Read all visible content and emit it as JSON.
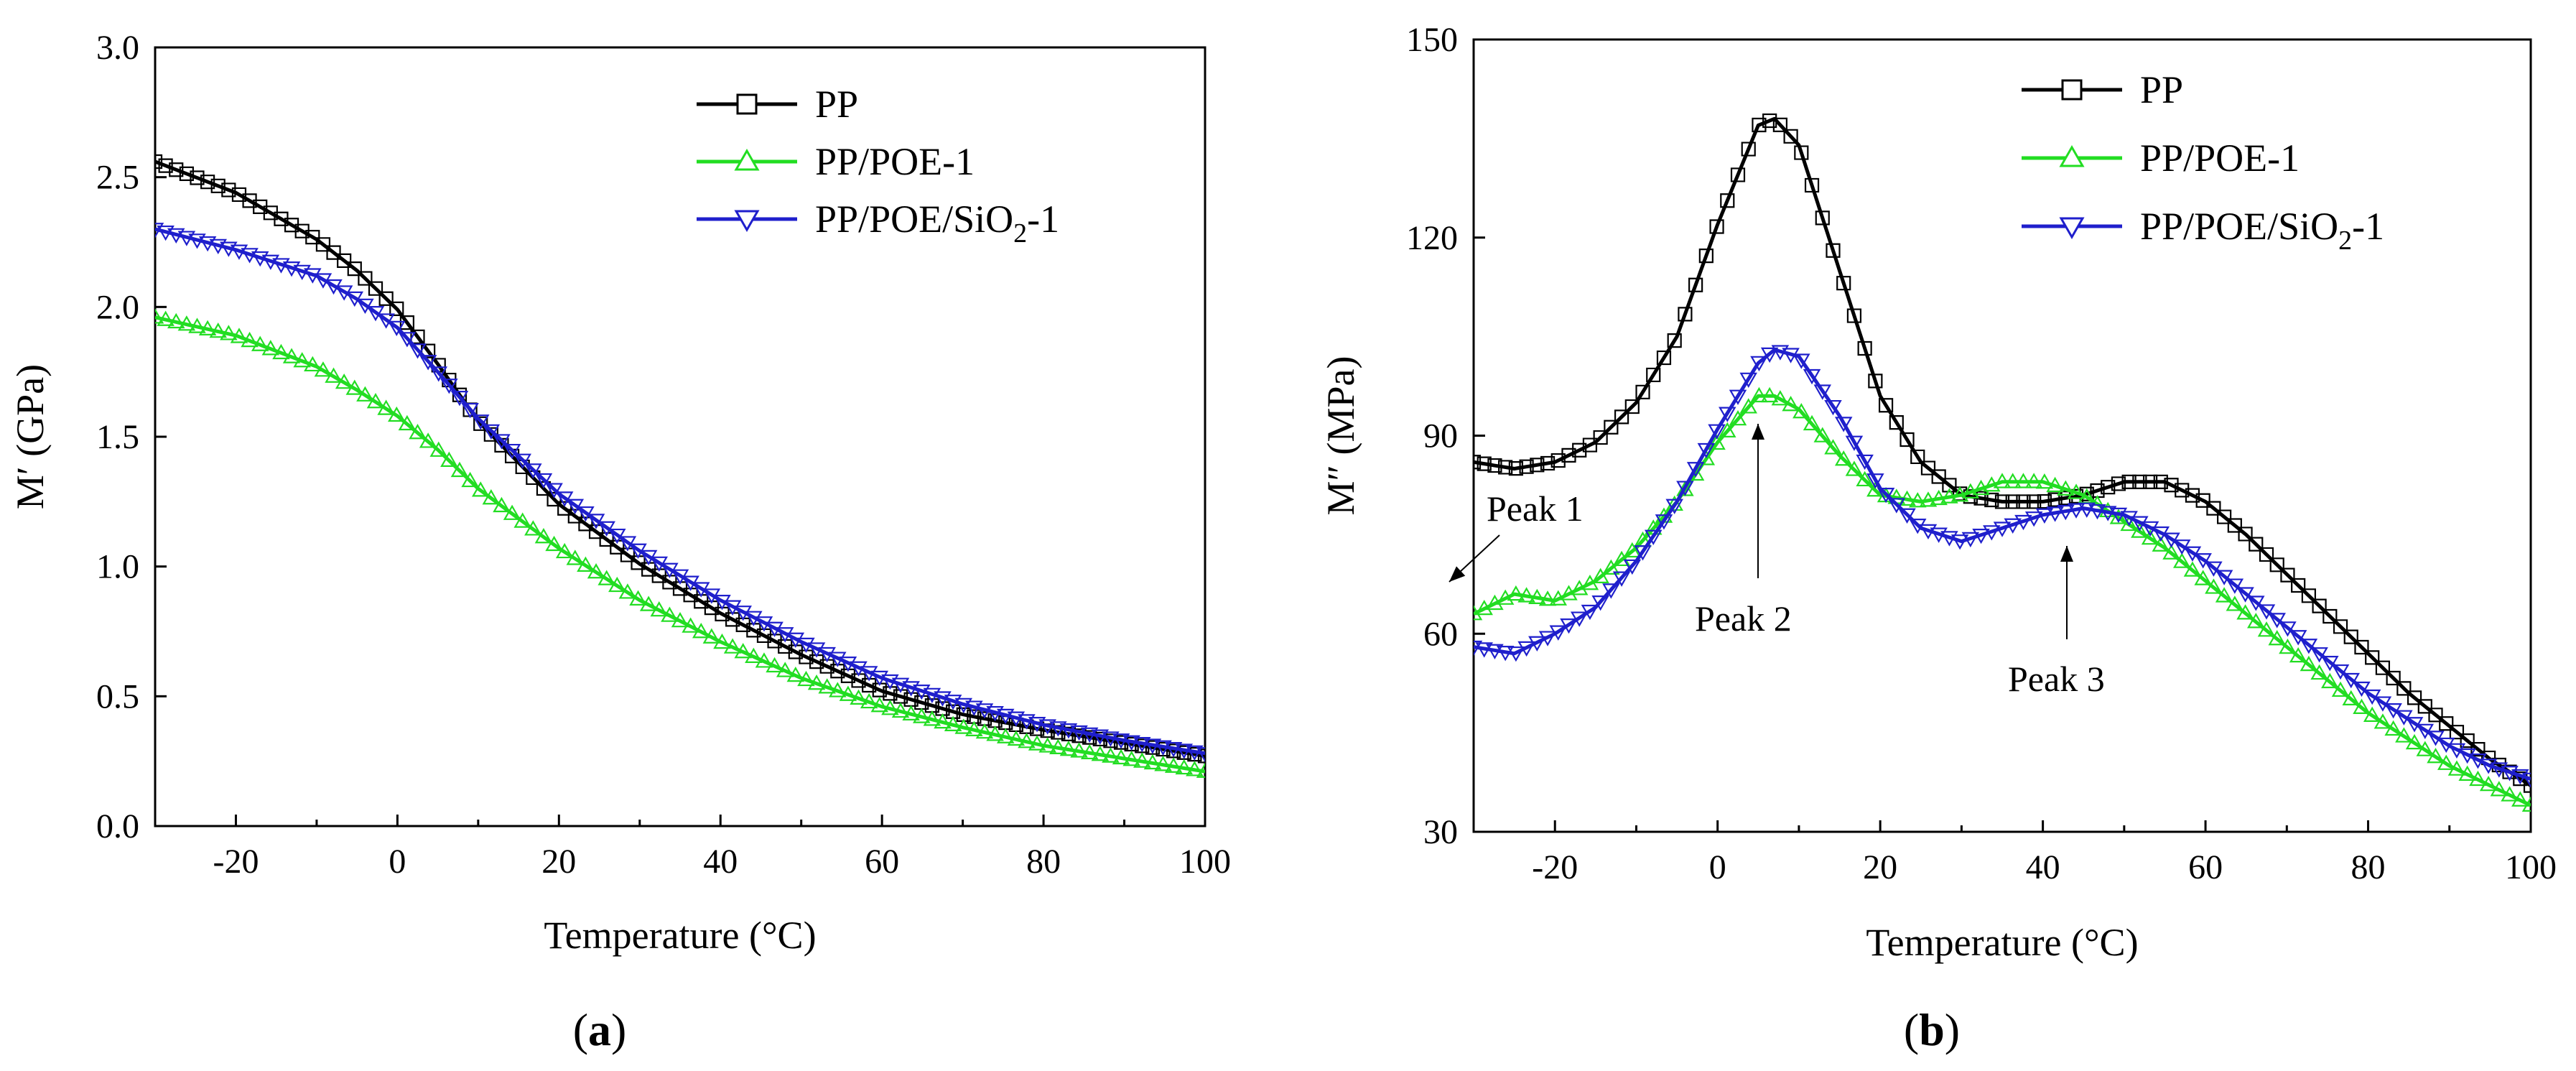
{
  "chart_data": [
    {
      "type": "line",
      "panel_label": "(a)",
      "panel_label_letter": "a",
      "xlabel": "Temperature (°C)",
      "ylabel": "M′ (GPa)",
      "xlim": [
        -30,
        100
      ],
      "ylim": [
        0.0,
        3.0
      ],
      "xticks": [
        "-20",
        "0",
        "20",
        "40",
        "60",
        "80",
        "100"
      ],
      "yticks": [
        "0.0",
        "0.5",
        "1.0",
        "1.5",
        "2.0",
        "2.5",
        "3.0"
      ],
      "legend_position": "top-right",
      "grid": false,
      "series": [
        {
          "name": "PP",
          "marker": "square",
          "color": "#000000",
          "x": [
            -30,
            -20,
            -10,
            -5,
            0,
            5,
            10,
            20,
            30,
            40,
            50,
            60,
            70,
            80,
            90,
            100
          ],
          "values": [
            2.56,
            2.44,
            2.26,
            2.14,
            1.99,
            1.78,
            1.56,
            1.24,
            1.01,
            0.82,
            0.66,
            0.52,
            0.43,
            0.37,
            0.32,
            0.27
          ]
        },
        {
          "name": "PP/POE-1",
          "marker": "triangle-up",
          "color": "#22dd22",
          "x": [
            -30,
            -20,
            -10,
            -5,
            0,
            5,
            10,
            20,
            30,
            40,
            50,
            60,
            70,
            80,
            90,
            100
          ],
          "values": [
            1.96,
            1.89,
            1.77,
            1.68,
            1.58,
            1.45,
            1.3,
            1.07,
            0.87,
            0.71,
            0.57,
            0.46,
            0.38,
            0.31,
            0.26,
            0.21
          ]
        },
        {
          "name": "PP/POE/SiO2-1",
          "name_main": "PP/POE/SiO",
          "name_sub": "2",
          "name_tail": "-1",
          "marker": "triangle-down",
          "color": "#1f1fcc",
          "x": [
            -30,
            -20,
            -10,
            -5,
            0,
            5,
            10,
            20,
            30,
            40,
            50,
            60,
            70,
            80,
            90,
            100
          ],
          "values": [
            2.3,
            2.22,
            2.12,
            2.03,
            1.92,
            1.75,
            1.57,
            1.28,
            1.06,
            0.87,
            0.71,
            0.57,
            0.47,
            0.39,
            0.33,
            0.28
          ]
        }
      ]
    },
    {
      "type": "line",
      "panel_label": "(b)",
      "panel_label_letter": "b",
      "xlabel": "Temperature (°C)",
      "ylabel": "M″ (MPa)",
      "xlim": [
        -30,
        100
      ],
      "ylim": [
        30,
        150
      ],
      "xticks": [
        "-20",
        "0",
        "20",
        "40",
        "60",
        "80",
        "100"
      ],
      "yticks": [
        "30",
        "60",
        "90",
        "120",
        "150"
      ],
      "legend_position": "top-right",
      "grid": false,
      "annotations": [
        {
          "text": "Peak 1",
          "x": -25,
          "y": 66
        },
        {
          "text": "Peak 2",
          "x": 6,
          "y": 96
        },
        {
          "text": "Peak 3",
          "x": 43,
          "y": 79
        }
      ],
      "series": [
        {
          "name": "PP",
          "marker": "square",
          "color": "#000000",
          "x": [
            -30,
            -25,
            -20,
            -15,
            -10,
            -5,
            0,
            5,
            7,
            10,
            15,
            20,
            25,
            30,
            35,
            40,
            45,
            50,
            55,
            60,
            65,
            70,
            75,
            80,
            85,
            90,
            95,
            100
          ],
          "values": [
            86,
            85,
            86,
            89,
            95,
            105,
            122,
            137,
            138,
            134,
            115,
            96,
            86,
            81,
            80,
            80,
            81,
            83,
            83,
            80,
            75,
            69,
            63,
            57,
            51,
            46,
            41,
            37
          ]
        },
        {
          "name": "PP/POE-1",
          "marker": "triangle-up",
          "color": "#22dd22",
          "x": [
            -30,
            -25,
            -20,
            -15,
            -10,
            -5,
            0,
            5,
            7,
            10,
            15,
            20,
            25,
            30,
            35,
            40,
            45,
            50,
            55,
            60,
            65,
            70,
            75,
            80,
            85,
            90,
            95,
            100
          ],
          "values": [
            63,
            66,
            65,
            68,
            73,
            80,
            89,
            96,
            96,
            94,
            87,
            81,
            80,
            81,
            83,
            83,
            81,
            77,
            73,
            68,
            63,
            58,
            53,
            48,
            44,
            40,
            37,
            34
          ]
        },
        {
          "name": "PP/POE/SiO2-1",
          "name_main": "PP/POE/SiO",
          "name_sub": "2",
          "name_tail": "-1",
          "marker": "triangle-down",
          "color": "#1f1fcc",
          "x": [
            -30,
            -25,
            -20,
            -15,
            -10,
            -5,
            0,
            5,
            7,
            10,
            15,
            20,
            25,
            30,
            35,
            40,
            45,
            50,
            55,
            60,
            65,
            70,
            75,
            80,
            85,
            90,
            95,
            100
          ],
          "values": [
            58,
            57,
            60,
            64,
            71,
            80,
            91,
            101,
            103,
            102,
            93,
            82,
            76,
            74,
            76,
            78,
            79,
            78,
            75,
            71,
            66,
            61,
            56,
            51,
            47,
            43,
            40,
            38
          ]
        }
      ]
    }
  ]
}
